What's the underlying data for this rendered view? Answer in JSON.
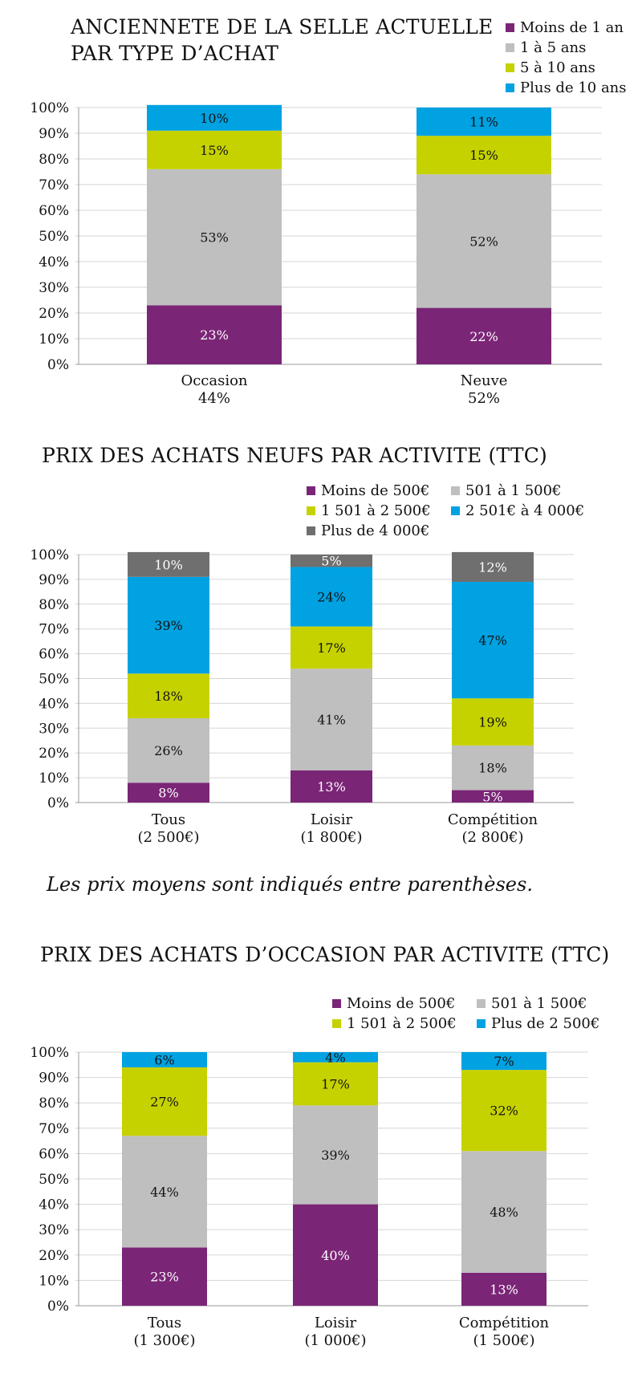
{
  "chart_data": [
    {
      "type": "bar",
      "stacked": true,
      "title": "ANCIENNETE DE LA SELLE ACTUELLE PAR TYPE D’ACHAT",
      "title_lines": [
        "ANCIENNETE DE LA SELLE ACTUELLE",
        "PAR TYPE D’ACHAT"
      ],
      "categories": [
        [
          "Occasion",
          "44%"
        ],
        [
          "Neuve",
          "52%"
        ]
      ],
      "series": [
        {
          "name": "Moins de 1 an",
          "color": "#7b2577",
          "values": [
            23,
            22
          ]
        },
        {
          "name": "1 à 5 ans",
          "color": "#bfbfbf",
          "values": [
            53,
            52
          ]
        },
        {
          "name": "5 à 10 ans",
          "color": "#c6d200",
          "values": [
            15,
            15
          ]
        },
        {
          "name": "Plus de 10 ans",
          "color": "#00a2e1",
          "values": [
            10,
            11
          ]
        }
      ],
      "ylim": [
        0,
        100
      ],
      "yticks": [
        "0%",
        "10%",
        "20%",
        "30%",
        "40%",
        "50%",
        "60%",
        "70%",
        "80%",
        "90%",
        "100%"
      ],
      "grid": true,
      "legend": "top-right"
    },
    {
      "type": "bar",
      "stacked": true,
      "title": "PRIX DES ACHATS NEUFS PAR ACTIVITE (TTC)",
      "title_lines": [
        "PRIX DES ACHATS NEUFS PAR ACTIVITE (TTC)"
      ],
      "categories": [
        [
          "Tous",
          "(2 500€)"
        ],
        [
          "Loisir",
          "(1 800€)"
        ],
        [
          "Compétition",
          "(2 800€)"
        ]
      ],
      "series": [
        {
          "name": "Moins de 500€",
          "color": "#7b2577",
          "values": [
            8,
            13,
            5
          ]
        },
        {
          "name": "501 à 1 500€",
          "color": "#bfbfbf",
          "values": [
            26,
            41,
            18
          ]
        },
        {
          "name": "1 501 à 2 500€",
          "color": "#c6d200",
          "values": [
            18,
            17,
            19
          ]
        },
        {
          "name": "2 501€ à 4 000€",
          "color": "#00a2e1",
          "values": [
            39,
            24,
            47
          ]
        },
        {
          "name": "Plus de 4 000€",
          "color": "#6f6f6f",
          "values": [
            10,
            5,
            12
          ]
        }
      ],
      "ylim": [
        0,
        100
      ],
      "yticks": [
        "0%",
        "10%",
        "20%",
        "30%",
        "40%",
        "50%",
        "60%",
        "70%",
        "80%",
        "90%",
        "100%"
      ],
      "grid": true,
      "legend": "top-right"
    },
    {
      "type": "bar",
      "stacked": true,
      "title": "PRIX DES ACHATS D’OCCASION PAR ACTIVITE (TTC)",
      "title_lines": [
        "PRIX DES ACHATS D’OCCASION PAR ACTIVITE (TTC)"
      ],
      "categories": [
        [
          "Tous",
          "(1 300€)"
        ],
        [
          "Loisir",
          "(1 000€)"
        ],
        [
          "Compétition",
          "(1 500€)"
        ]
      ],
      "series": [
        {
          "name": "Moins de 500€",
          "color": "#7b2577",
          "values": [
            23,
            40,
            13
          ]
        },
        {
          "name": "501 à 1 500€",
          "color": "#bfbfbf",
          "values": [
            44,
            39,
            48
          ]
        },
        {
          "name": "1 501 à 2 500€",
          "color": "#c6d200",
          "values": [
            27,
            17,
            32
          ]
        },
        {
          "name": "Plus de 2 500€",
          "color": "#00a2e1",
          "values": [
            6,
            4,
            7
          ]
        }
      ],
      "ylim": [
        0,
        100
      ],
      "yticks": [
        "0%",
        "10%",
        "20%",
        "30%",
        "40%",
        "50%",
        "60%",
        "70%",
        "80%",
        "90%",
        "100%"
      ],
      "grid": true,
      "legend": "top-right"
    }
  ],
  "note": "Les prix moyens sont indiqués entre parenthèses."
}
